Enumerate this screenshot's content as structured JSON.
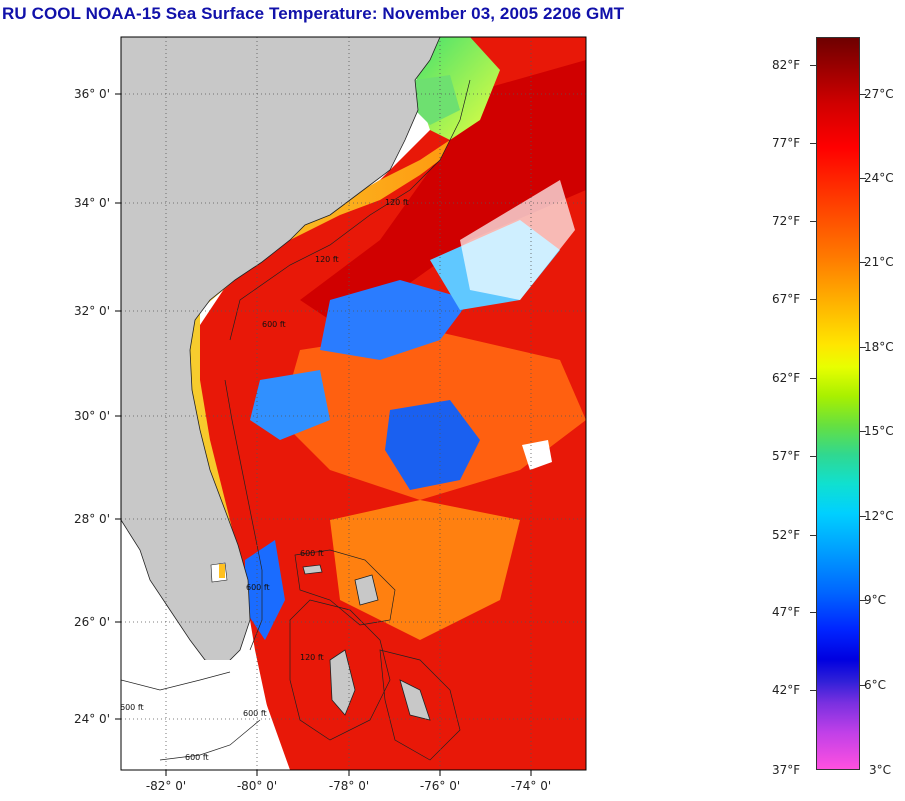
{
  "title": "RU COOL  NOAA-15  Sea Surface Temperature:  November 03, 2005 2206 GMT",
  "map": {
    "latitude_labels": [
      "36° 0'",
      "34° 0'",
      "32° 0'",
      "30° 0'",
      "28° 0'",
      "26° 0'",
      "24° 0'"
    ],
    "longitude_labels": [
      "-82° 0'",
      "-80° 0'",
      "-78° 0'",
      "-76° 0'",
      "-74° 0'"
    ],
    "isobath_labels": [
      "600 ft",
      "120 ft",
      "120 ft",
      "600 ft",
      "600 ft",
      "600 ft",
      "120 ft",
      "600 ft",
      "600 ft"
    ],
    "colors": {
      "land": "#c8c8c8",
      "no_data": "#ffffff",
      "warm_water": "#e81808",
      "cool_water": "#1a6cff",
      "shelf_water": "#f0c020"
    }
  },
  "colorbar": {
    "fahrenheit_labels": [
      "82°F",
      "77°F",
      "72°F",
      "67°F",
      "62°F",
      "57°F",
      "52°F",
      "47°F",
      "42°F",
      "37°F"
    ],
    "celsius_labels": [
      "27°C",
      "24°C",
      "21°C",
      "18°C",
      "15°C",
      "12°C",
      "9°C",
      "6°C",
      "3°C"
    ],
    "range_f": [
      37,
      84
    ],
    "range_c": [
      3,
      29
    ]
  }
}
